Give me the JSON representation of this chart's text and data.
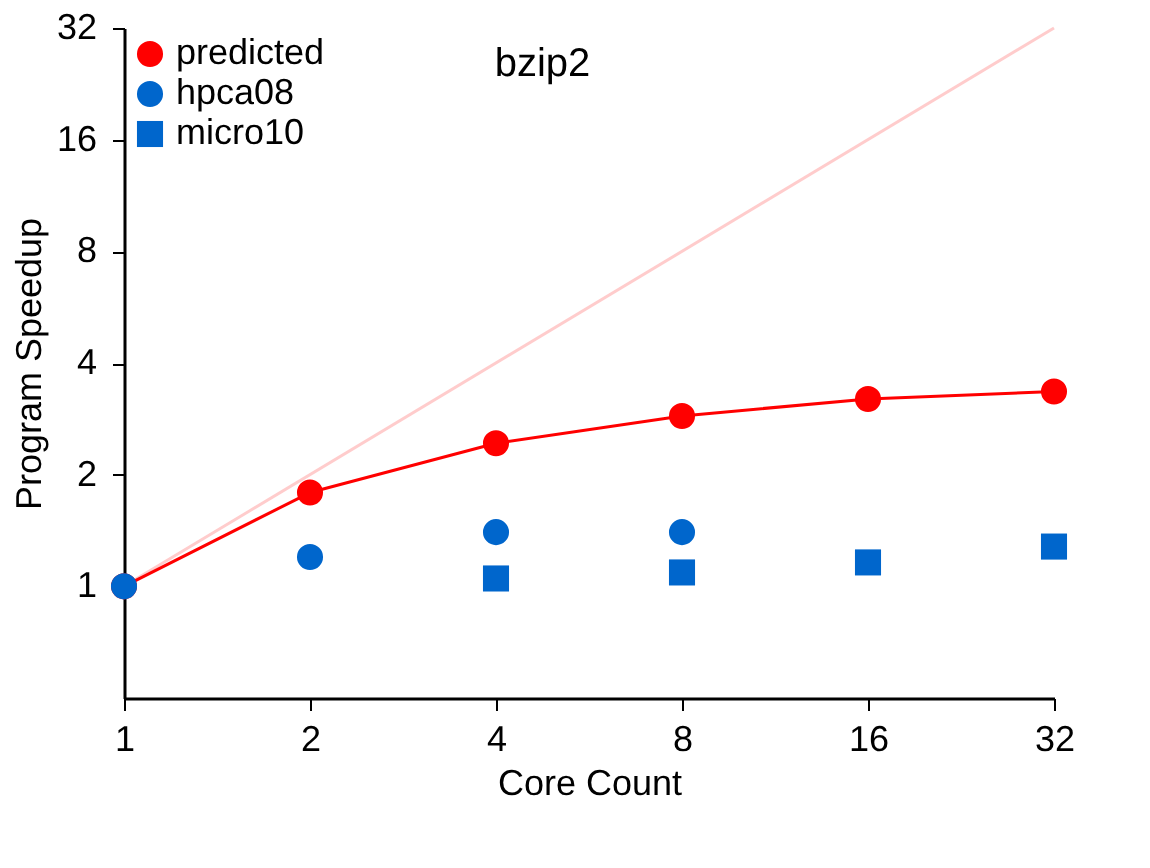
{
  "chart_data": {
    "type": "line",
    "title": "bzip2",
    "xlabel": "Core Count",
    "ylabel": "Program Speedup",
    "log": "xy",
    "grid": false,
    "legend": "top left",
    "xlim": [
      1,
      32
    ],
    "xticks": [
      1,
      2,
      4,
      8,
      16,
      32
    ],
    "ylim": [
      0.5,
      32
    ],
    "yticks": [
      1,
      2,
      4,
      8,
      16,
      32
    ],
    "series": [
      {
        "type": "line",
        "color": "#ffcccc",
        "marker": "none",
        "x": [
          1,
          32
        ],
        "values": [
          1,
          32
        ]
      },
      {
        "name": "predicted",
        "color": "#ff0000",
        "marker": "circle",
        "x": [
          1,
          2,
          4,
          8,
          16,
          32
        ],
        "values": [
          1,
          1.79,
          2.43,
          2.88,
          3.2,
          3.35
        ]
      },
      {
        "name": "hpca08",
        "type": "scatter",
        "color": "#0066cc",
        "marker": "circle",
        "x": [
          1,
          2,
          4,
          8
        ],
        "values": [
          1,
          1.2,
          1.4,
          1.4
        ]
      },
      {
        "name": "micro10",
        "type": "scatter",
        "color": "#0066cc",
        "marker": "square",
        "x": [
          4,
          8,
          16,
          32
        ],
        "values": [
          1.05,
          1.09,
          1.16,
          1.28
        ]
      }
    ]
  }
}
